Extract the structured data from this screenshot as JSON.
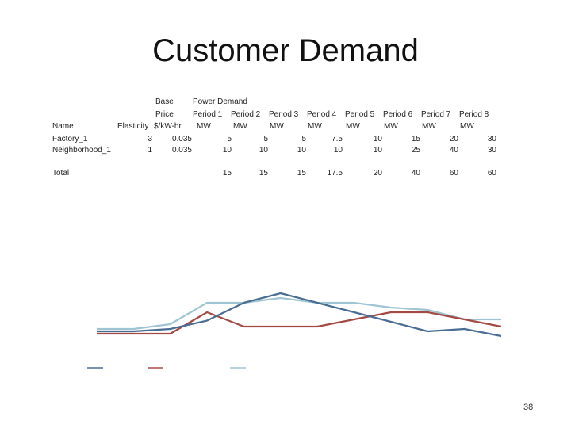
{
  "slide": {
    "title": "Customer Demand",
    "page_number": "38"
  },
  "table": {
    "header": {
      "base_price_line1": "Base",
      "base_price_line2": "Price",
      "base_price_unit": "$/kW-hr",
      "power_demand": "Power Demand",
      "name": "Name",
      "elasticity": "Elasticity"
    },
    "periods": [
      "Period 1",
      "Period 2",
      "Period 3",
      "Period 4",
      "Period 5",
      "Period 6",
      "Period 7",
      "Period 8"
    ],
    "unit": "MW",
    "rows": [
      {
        "name": "Factory_1",
        "elasticity": "3",
        "price": "0.035",
        "values": [
          "5",
          "5",
          "5",
          "7.5",
          "10",
          "15",
          "20",
          "30"
        ]
      },
      {
        "name": "Neighborhood_1",
        "elasticity": "1",
        "price": "0.035",
        "values": [
          "10",
          "10",
          "10",
          "10",
          "10",
          "25",
          "40",
          "30"
        ]
      }
    ],
    "total": {
      "label": "Total",
      "values": [
        "15",
        "15",
        "15",
        "17.5",
        "20",
        "40",
        "60",
        "60"
      ]
    }
  },
  "chart_data": {
    "type": "line",
    "x": [
      1,
      2,
      3,
      4,
      5,
      6,
      7,
      8,
      9,
      10,
      11,
      12
    ],
    "ylim": [
      0,
      60
    ],
    "grid": false,
    "series": [
      {
        "color": "#4a6d94",
        "values": [
          2.0,
          2.0,
          3.0,
          6.5,
          14.0,
          18.0,
          14.0,
          10.0,
          6.0,
          2.0,
          3.0,
          0.0
        ]
      },
      {
        "color": "#a34a45",
        "values": [
          1.0,
          1.0,
          1.0,
          10.0,
          4.0,
          4.0,
          4.0,
          7.0,
          10.0,
          10.0,
          7.0,
          4.0
        ]
      },
      {
        "color": "#9ec5d1",
        "values": [
          3.0,
          3.0,
          5.0,
          14.0,
          14.0,
          16.0,
          14.0,
          14.0,
          12.0,
          11.0,
          7.0,
          7.0
        ]
      }
    ]
  }
}
